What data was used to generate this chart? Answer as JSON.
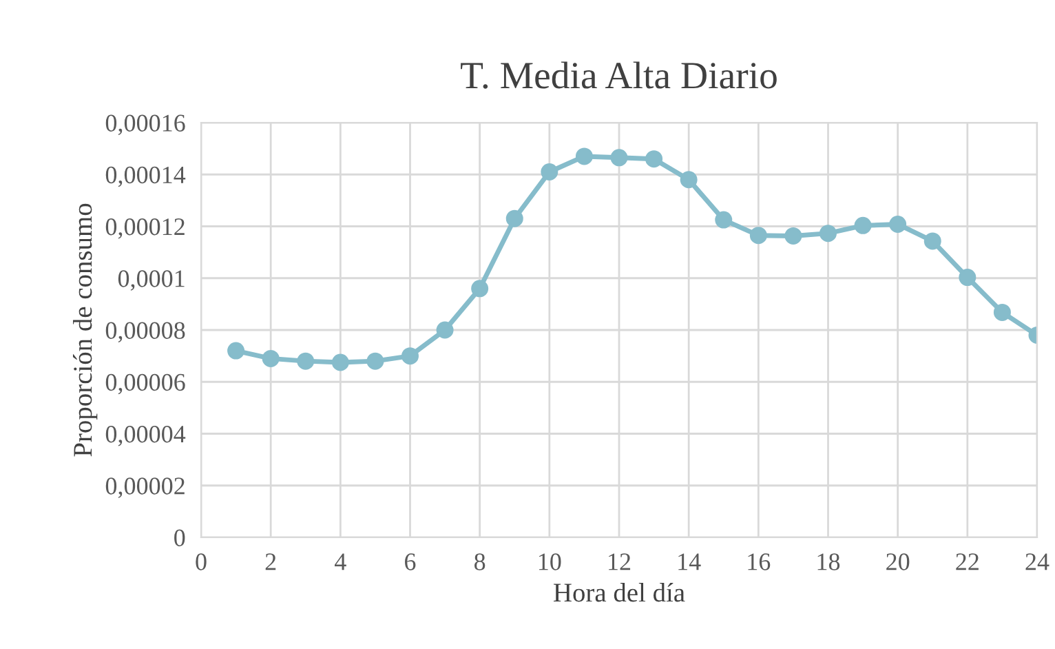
{
  "chart_data": {
    "type": "line",
    "title": "T. Media Alta Diario",
    "xlabel": "Hora del día",
    "ylabel": "Proporción de consumo",
    "x": [
      1,
      2,
      3,
      4,
      5,
      6,
      7,
      8,
      9,
      10,
      11,
      12,
      13,
      14,
      15,
      16,
      17,
      18,
      19,
      20,
      21,
      22,
      23,
      24
    ],
    "series": [
      {
        "color": "#86bccb",
        "values": [
          7.2e-05,
          6.9e-05,
          6.8e-05,
          6.75e-05,
          6.8e-05,
          7e-05,
          8e-05,
          9.6e-05,
          0.000123,
          0.000141,
          0.000147,
          0.0001465,
          0.000146,
          0.000138,
          0.0001225,
          0.0001165,
          0.0001163,
          0.0001173,
          0.0001203,
          0.0001208,
          0.0001143,
          0.0001003,
          8.68e-05,
          7.8e-05
        ]
      }
    ],
    "xlim": [
      0,
      24
    ],
    "xticks": [
      0,
      2,
      4,
      6,
      8,
      10,
      12,
      14,
      16,
      18,
      20,
      22,
      24
    ],
    "ylim": [
      0,
      0.00016
    ],
    "yticks": [
      0,
      {
        "value": 2e-05,
        "label": "0,00002"
      },
      {
        "value": 4e-05,
        "label": "0,00004"
      },
      {
        "value": 6e-05,
        "label": "0,00006"
      },
      {
        "value": 8e-05,
        "label": "0,00008"
      },
      {
        "value": 0.0001,
        "label": "0,0001"
      },
      {
        "value": 0.00012,
        "label": "0,00012"
      },
      {
        "value": 0.00014,
        "label": "0,00014"
      },
      {
        "value": 0.00016,
        "label": "0,00016"
      }
    ],
    "grid": true,
    "marker": "circle",
    "line_style": "solid",
    "legend": false
  }
}
